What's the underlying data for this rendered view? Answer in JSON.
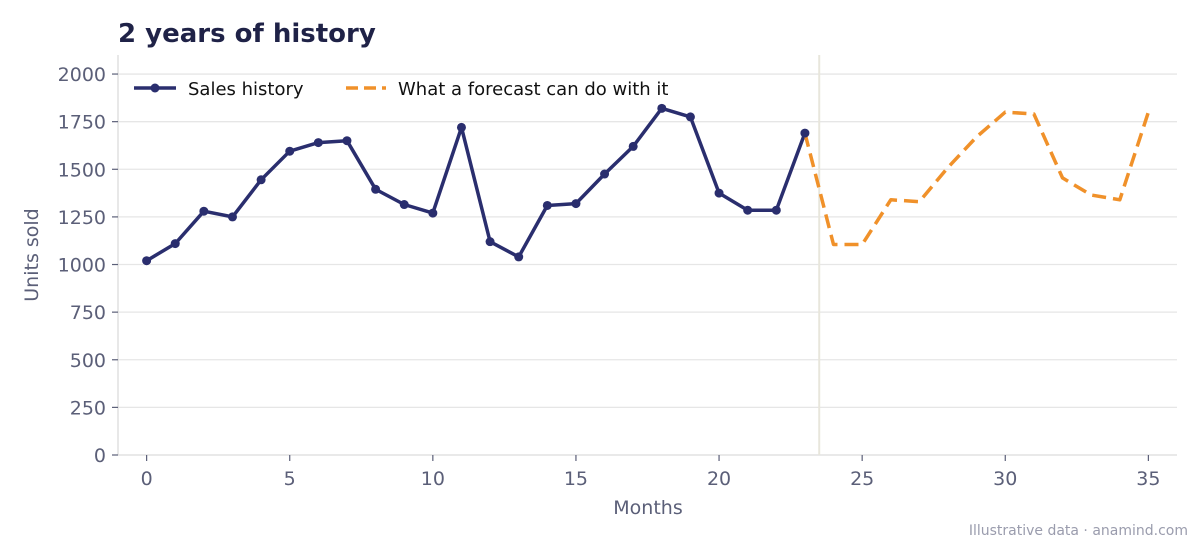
{
  "chart_data": {
    "type": "line",
    "title": "2 years of history",
    "xlabel": "Months",
    "ylabel": "Units sold",
    "xlim": [
      -1,
      36
    ],
    "ylim": [
      0,
      2100
    ],
    "xticks": [
      0,
      5,
      10,
      15,
      20,
      25,
      30,
      35
    ],
    "yticks": [
      0,
      250,
      500,
      750,
      1000,
      1250,
      1500,
      1750,
      2000
    ],
    "grid": "horizontal",
    "legend_position": "top-left",
    "divider_x": 23.5,
    "series": [
      {
        "name": "Sales history",
        "style": "solid-with-markers",
        "color": "#2a2e6e",
        "x": [
          0,
          1,
          2,
          3,
          4,
          5,
          6,
          7,
          8,
          9,
          10,
          11,
          12,
          13,
          14,
          15,
          16,
          17,
          18,
          19,
          20,
          21,
          22,
          23
        ],
        "values": [
          1020,
          1110,
          1280,
          1250,
          1445,
          1595,
          1640,
          1650,
          1395,
          1315,
          1270,
          1720,
          1120,
          1040,
          1310,
          1320,
          1475,
          1620,
          1820,
          1775,
          1375,
          1285,
          1285,
          1690
        ]
      },
      {
        "name": "What a forecast can do with it",
        "style": "dashed",
        "color": "#f0912a",
        "x": [
          23,
          24,
          25,
          26,
          27,
          28,
          29,
          30,
          31,
          32,
          33,
          34,
          35
        ],
        "values": [
          1690,
          1105,
          1105,
          1340,
          1330,
          1510,
          1670,
          1800,
          1790,
          1455,
          1365,
          1340,
          1800
        ]
      }
    ]
  },
  "footer": "Illustrative data · anamind.com"
}
